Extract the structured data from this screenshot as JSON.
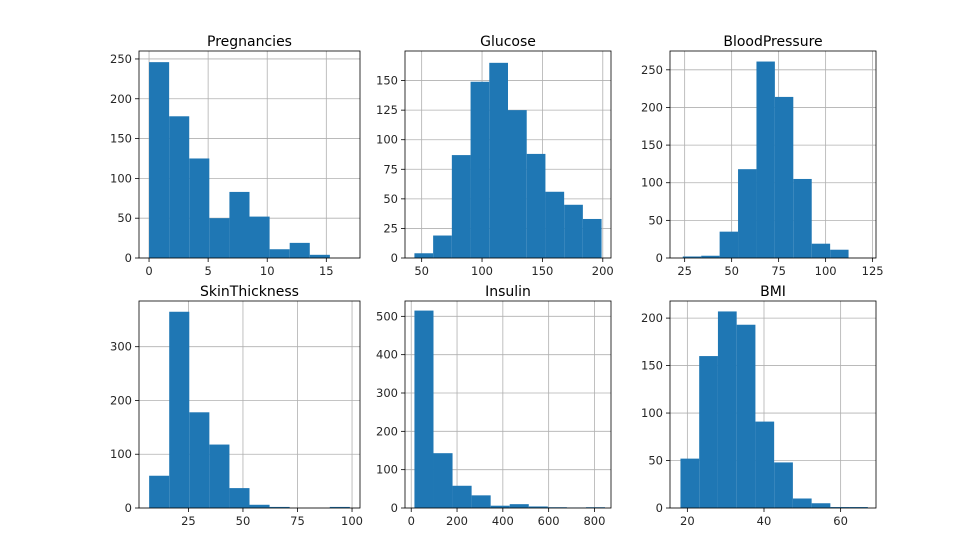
{
  "figure": {
    "background": "#ffffff",
    "bar_color": "#1f77b4",
    "grid": true
  },
  "chart_data": [
    {
      "type": "bar",
      "title": "Pregnancies",
      "xlabel": "",
      "ylabel": "",
      "xlim": [
        -0.85,
        17.85
      ],
      "ylim": [
        0,
        260
      ],
      "xticks": [
        0,
        5,
        10,
        15
      ],
      "yticks": [
        0,
        50,
        100,
        150,
        200,
        250
      ],
      "bin_edges": [
        0,
        1.7,
        3.4,
        5.1,
        6.8,
        8.5,
        10.2,
        11.9,
        13.6,
        15.3,
        17
      ],
      "counts": [
        246,
        178,
        125,
        50,
        83,
        52,
        11,
        19,
        4,
        0
      ]
    },
    {
      "type": "bar",
      "title": "Glucose",
      "xlabel": "",
      "ylabel": "",
      "xlim": [
        36.2,
        206.8
      ],
      "ylim": [
        0,
        175
      ],
      "xticks": [
        50,
        100,
        150,
        200
      ],
      "yticks": [
        0,
        25,
        50,
        75,
        100,
        125,
        150
      ],
      "bin_edges": [
        44,
        59.5,
        75,
        90.5,
        106,
        121.5,
        137,
        152.5,
        168,
        183.5,
        199
      ],
      "counts": [
        4,
        19,
        87,
        149,
        165,
        125,
        88,
        56,
        45,
        33
      ]
    },
    {
      "type": "bar",
      "title": "BloodPressure",
      "xlabel": "",
      "ylabel": "",
      "xlim": [
        17.2,
        126.8
      ],
      "ylim": [
        0,
        275
      ],
      "xticks": [
        25,
        50,
        75,
        100,
        125
      ],
      "yticks": [
        0,
        50,
        100,
        150,
        200,
        250
      ],
      "bin_edges": [
        24,
        33.8,
        43.6,
        53.4,
        63.2,
        73,
        82.8,
        92.6,
        102.4,
        112.2,
        122
      ],
      "counts": [
        2,
        3,
        35,
        118,
        261,
        214,
        105,
        19,
        11,
        0
      ]
    },
    {
      "type": "bar",
      "title": "SkinThickness",
      "xlabel": "",
      "ylabel": "",
      "xlim": [
        2.35,
        103.65
      ],
      "ylim": [
        0,
        385
      ],
      "xticks": [
        25,
        50,
        75,
        100
      ],
      "yticks": [
        0,
        100,
        200,
        300
      ],
      "bin_edges": [
        7,
        16.2,
        25.4,
        34.6,
        43.8,
        53,
        62.2,
        71.4,
        80.6,
        89.8,
        99
      ],
      "counts": [
        60,
        365,
        178,
        118,
        37,
        6,
        2,
        0,
        0,
        2
      ]
    },
    {
      "type": "bar",
      "title": "Insulin",
      "xlabel": "",
      "ylabel": "",
      "xlim": [
        -27.2,
        872.2
      ],
      "ylim": [
        0,
        540
      ],
      "xticks": [
        0,
        200,
        400,
        600,
        800
      ],
      "yticks": [
        0,
        100,
        200,
        300,
        400,
        500
      ],
      "bin_edges": [
        14,
        97.2,
        180.4,
        263.6,
        346.8,
        430,
        513.2,
        596.4,
        679.6,
        762.8,
        846
      ],
      "counts": [
        515,
        143,
        58,
        33,
        6,
        10,
        4,
        2,
        1,
        2
      ]
    },
    {
      "type": "bar",
      "title": "BMI",
      "xlabel": "",
      "ylabel": "",
      "xlim": [
        15.47,
        69.23
      ],
      "ylim": [
        0,
        218
      ],
      "xticks": [
        20,
        40,
        60
      ],
      "yticks": [
        0,
        50,
        100,
        150,
        200
      ],
      "bin_edges": [
        18.2,
        23.09,
        27.98,
        32.87,
        37.76,
        42.65,
        47.54,
        52.43,
        57.32,
        62.21,
        67.1
      ],
      "counts": [
        52,
        160,
        207,
        193,
        91,
        48,
        10,
        5,
        1,
        1
      ]
    }
  ]
}
